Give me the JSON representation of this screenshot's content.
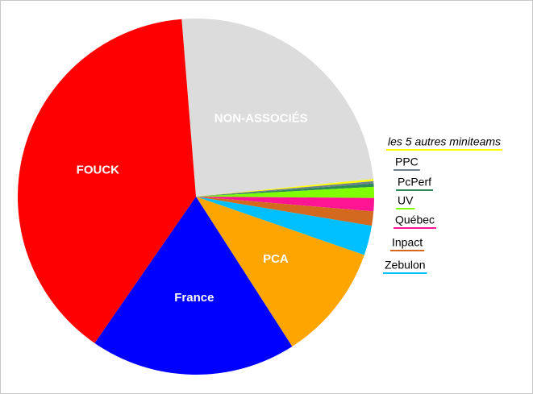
{
  "chart_data": {
    "type": "pie",
    "categories": [
      "NON-ASSOCIÉS",
      "les 5 autres miniteams",
      "PPC",
      "PcPerf",
      "UV",
      "Québec",
      "Inpact",
      "Zebulon",
      "PCA",
      "France",
      "FOUCK"
    ],
    "values": [
      24.7,
      0.2,
      0.2,
      0.3,
      1.0,
      1.2,
      1.3,
      2.7,
      10.6,
      18.7,
      39.1
    ],
    "colors": [
      "#dcdcdc",
      "#ffff00",
      "#708090",
      "#2e8b57",
      "#7fff00",
      "#ff1493",
      "#d2691e",
      "#00bfff",
      "#ffa500",
      "#0000ff",
      "#ff0000"
    ]
  }
}
